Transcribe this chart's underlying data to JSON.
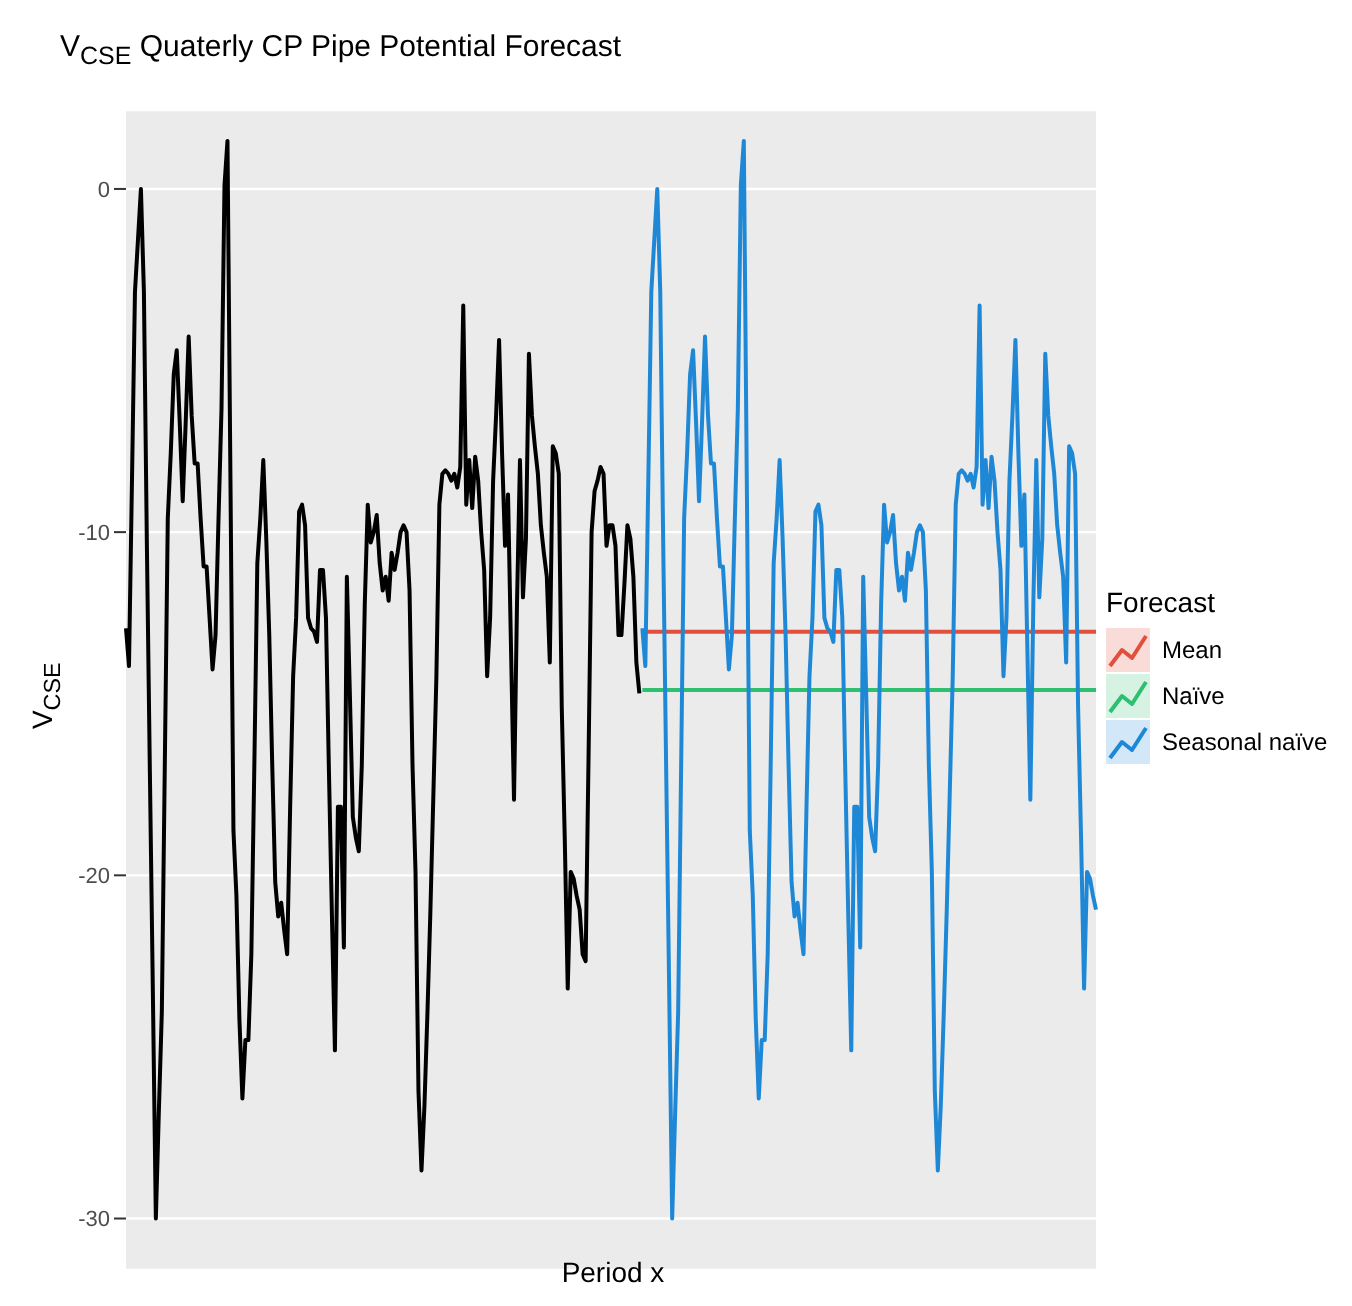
{
  "chart_data": {
    "type": "line",
    "title": "V$_{CSE}$ Quaterly CP Pipe Potential Forecast",
    "xlabel": "Period x",
    "ylabel": "V$_{CSE}$",
    "legend_title": "Forecast",
    "legend": "right",
    "grid": "y",
    "ylim": [
      -31.5,
      2.3
    ],
    "yticks": [
      0,
      -10,
      -20,
      -30
    ],
    "categories": [
      null,
      null,
      null,
      null,
      null,
      null,
      null,
      null,
      null,
      null,
      null,
      null,
      null,
      null,
      null,
      null,
      null,
      null,
      null,
      null,
      null,
      null,
      null,
      null,
      null,
      null,
      null,
      null,
      null,
      null,
      null,
      null,
      null,
      null,
      null,
      null,
      null,
      null,
      null,
      null,
      null,
      null,
      null,
      null,
      null,
      null,
      null,
      null,
      null,
      null,
      null,
      null,
      null,
      null,
      null,
      null,
      null,
      null,
      null,
      null,
      null,
      null,
      null,
      null,
      null,
      null,
      null,
      null,
      null,
      null,
      null,
      null,
      null,
      null,
      null,
      null,
      null,
      null,
      null,
      null,
      null,
      null,
      null,
      null,
      null,
      null,
      null,
      null,
      null,
      null,
      null,
      null,
      null,
      null,
      null,
      null,
      null,
      null,
      null,
      null,
      null,
      null,
      null,
      null,
      null,
      null,
      null,
      null,
      null,
      null,
      null,
      null,
      null,
      null,
      null,
      null,
      null,
      null,
      null,
      null,
      null,
      null,
      null,
      null,
      null,
      null,
      null,
      null,
      null,
      null,
      null,
      null,
      null,
      null,
      null,
      null,
      null,
      null,
      null,
      null,
      null,
      null,
      null,
      null,
      null,
      null,
      null,
      null,
      null,
      null,
      null,
      null,
      null,
      null,
      null,
      null,
      null,
      null,
      null,
      null,
      null,
      null,
      null,
      null,
      null,
      null,
      null,
      null,
      null,
      null,
      null,
      null,
      null,
      null,
      null,
      null,
      null,
      null,
      null,
      null,
      null,
      null,
      null,
      null,
      null,
      null,
      null,
      null,
      null,
      null,
      null,
      null,
      null,
      null,
      null,
      null,
      null,
      null,
      null,
      null,
      null,
      null,
      null,
      null,
      null,
      null,
      null,
      null,
      null,
      null,
      null,
      null,
      null,
      null,
      null,
      null,
      null,
      null,
      null,
      null,
      null,
      null,
      null,
      null,
      null,
      null,
      null,
      null,
      null,
      null,
      null,
      null,
      null,
      null,
      null,
      null,
      null,
      null,
      null,
      null,
      null,
      null,
      null,
      null,
      null,
      null,
      null,
      null,
      null,
      null,
      null,
      null,
      null,
      null,
      null,
      null,
      null,
      null,
      null,
      null,
      null,
      null,
      null,
      null,
      null,
      null,
      null,
      null,
      null,
      null,
      null,
      null,
      null,
      null,
      null,
      null,
      null,
      null,
      null,
      null,
      null,
      null,
      null,
      null,
      null,
      null,
      null,
      null,
      null,
      null,
      null,
      null,
      null,
      null,
      null,
      null,
      null,
      null,
      null,
      null,
      null,
      null,
      null,
      null,
      null,
      null,
      null,
      null,
      null,
      null,
      null,
      null,
      null,
      null,
      null,
      null,
      null,
      null,
      null,
      null,
      null,
      null,
      null,
      null,
      null,
      null
    ],
    "series": [
      {
        "color": "#000000",
        "values": [
          -12.8,
          -13.9,
          -8.5,
          -3.0,
          -1.5,
          0.0,
          -3.0,
          -10.4,
          -17.0,
          -23.4,
          -30.0,
          -26.9,
          -24.0,
          -16.8,
          -9.6,
          -7.7,
          -5.4,
          -4.7,
          -6.8,
          -9.1,
          -6.8,
          -4.3,
          -6.6,
          -8.0,
          -8.0,
          -9.6,
          -11.0,
          -11.0,
          -12.5,
          -14.0,
          -13.0,
          -9.6,
          -6.4,
          0.1,
          1.4,
          -8.5,
          -18.7,
          -20.6,
          -24.2,
          -26.5,
          -24.8,
          -24.8,
          -22.3,
          -16.8,
          -10.9,
          -9.6,
          -7.9,
          -10.2,
          -13.0,
          -16.8,
          -20.2,
          -21.2,
          -20.8,
          -21.6,
          -22.3,
          -18.0,
          -14.2,
          -12.5,
          -9.4,
          -9.2,
          -9.8,
          -12.5,
          -12.8,
          -12.9,
          -13.2,
          -11.1,
          -11.1,
          -12.5,
          -17.0,
          -21.2,
          -25.1,
          -18.0,
          -18.0,
          -22.1,
          -11.3,
          -14.7,
          -18.3,
          -18.9,
          -19.3,
          -16.8,
          -12.1,
          -9.2,
          -10.3,
          -10.0,
          -9.5,
          -10.9,
          -11.7,
          -11.3,
          -12.0,
          -10.6,
          -11.1,
          -10.6,
          -10.0,
          -9.8,
          -10.0,
          -11.7,
          -16.8,
          -19.9,
          -26.3,
          -28.6,
          -26.7,
          -24.0,
          -21.0,
          -17.6,
          -14.2,
          -9.2,
          -8.3,
          -8.2,
          -8.3,
          -8.5,
          -8.3,
          -8.7,
          -8.1,
          -3.4,
          -9.2,
          -7.9,
          -9.3,
          -7.8,
          -8.5,
          -10.0,
          -11.1,
          -14.2,
          -12.5,
          -8.5,
          -6.6,
          -4.4,
          -7.7,
          -10.4,
          -8.9,
          -13.4,
          -17.8,
          -12.1,
          -7.9,
          -11.9,
          -10.2,
          -4.8,
          -6.6,
          -7.5,
          -8.3,
          -9.8,
          -10.6,
          -11.3,
          -13.8,
          -7.5,
          -7.7,
          -8.3,
          -15.1,
          -18.9,
          -23.3,
          -19.9,
          -20.1,
          -20.6,
          -21.0,
          -22.3,
          -22.5,
          -16.4,
          -10.0,
          -8.8,
          -8.5,
          -8.1,
          -8.3,
          -10.4,
          -9.8,
          -9.8,
          -10.4,
          -13.0,
          -13.0,
          -11.5,
          -9.8,
          -10.2,
          -11.3,
          -13.8,
          -14.7,
          null,
          null,
          null,
          null,
          null,
          null,
          null,
          null,
          null,
          null,
          null,
          null,
          null,
          null,
          null,
          null,
          null,
          null,
          null,
          null,
          null,
          null,
          null,
          null,
          null,
          null,
          null,
          null,
          null,
          null,
          null,
          null,
          null,
          null,
          null,
          null,
          null,
          null,
          null,
          null,
          null,
          null,
          null,
          null,
          null,
          null,
          null,
          null,
          null,
          null,
          null,
          null,
          null,
          null,
          null,
          null,
          null,
          null,
          null,
          null,
          null,
          null,
          null,
          null,
          null,
          null,
          null,
          null,
          null,
          null,
          null,
          null,
          null,
          null,
          null,
          null,
          null,
          null,
          null,
          null,
          null,
          null,
          null,
          null,
          null,
          null,
          null,
          null,
          null,
          null,
          null,
          null,
          null,
          null,
          null,
          null,
          null,
          null,
          null,
          null,
          null,
          null,
          null,
          null,
          null,
          null,
          null,
          null,
          null,
          null,
          null,
          null,
          null,
          null,
          null,
          null,
          null,
          null,
          null,
          null,
          null,
          null,
          null,
          null,
          null,
          null,
          null,
          null,
          null,
          null,
          null,
          null,
          null,
          null,
          null,
          null,
          null,
          null,
          null,
          null,
          null,
          null,
          null,
          null,
          null,
          null,
          null,
          null,
          null,
          null,
          null,
          null,
          null
        ]
      },
      {
        "name": "Mean",
        "color": "#e0503c",
        "values": [
          null,
          null,
          null,
          null,
          null,
          null,
          null,
          null,
          null,
          null,
          null,
          null,
          null,
          null,
          null,
          null,
          null,
          null,
          null,
          null,
          null,
          null,
          null,
          null,
          null,
          null,
          null,
          null,
          null,
          null,
          null,
          null,
          null,
          null,
          null,
          null,
          null,
          null,
          null,
          null,
          null,
          null,
          null,
          null,
          null,
          null,
          null,
          null,
          null,
          null,
          null,
          null,
          null,
          null,
          null,
          null,
          null,
          null,
          null,
          null,
          null,
          null,
          null,
          null,
          null,
          null,
          null,
          null,
          null,
          null,
          null,
          null,
          null,
          null,
          null,
          null,
          null,
          null,
          null,
          null,
          null,
          null,
          null,
          null,
          null,
          null,
          null,
          null,
          null,
          null,
          null,
          null,
          null,
          null,
          null,
          null,
          null,
          null,
          null,
          null,
          null,
          null,
          null,
          null,
          null,
          null,
          null,
          null,
          null,
          null,
          null,
          null,
          null,
          null,
          null,
          null,
          null,
          null,
          null,
          null,
          null,
          null,
          null,
          null,
          null,
          null,
          null,
          null,
          null,
          null,
          null,
          null,
          null,
          null,
          null,
          null,
          null,
          null,
          null,
          null,
          null,
          null,
          null,
          null,
          null,
          null,
          null,
          null,
          null,
          null,
          null,
          null,
          null,
          null,
          null,
          null,
          null,
          null,
          null,
          null,
          null,
          null,
          null,
          null,
          null,
          null,
          null,
          null,
          null,
          null,
          null,
          null,
          null,
          -12.9,
          -12.9,
          -12.9,
          -12.9,
          -12.9,
          -12.9,
          -12.9,
          -12.9,
          -12.9,
          -12.9,
          -12.9,
          -12.9,
          -12.9,
          -12.9,
          -12.9,
          -12.9,
          -12.9,
          -12.9,
          -12.9,
          -12.9,
          -12.9,
          -12.9,
          -12.9,
          -12.9,
          -12.9,
          -12.9,
          -12.9,
          -12.9,
          -12.9,
          -12.9,
          -12.9,
          -12.9,
          -12.9,
          -12.9,
          -12.9,
          -12.9,
          -12.9,
          -12.9,
          -12.9,
          -12.9,
          -12.9,
          -12.9,
          -12.9,
          -12.9,
          -12.9,
          -12.9,
          -12.9,
          -12.9,
          -12.9,
          -12.9,
          -12.9,
          -12.9,
          -12.9,
          -12.9,
          -12.9,
          -12.9,
          -12.9,
          -12.9,
          -12.9,
          -12.9,
          -12.9,
          -12.9,
          -12.9,
          -12.9,
          -12.9,
          -12.9,
          -12.9,
          -12.9,
          -12.9,
          -12.9,
          -12.9,
          -12.9,
          -12.9,
          -12.9,
          -12.9,
          -12.9,
          -12.9,
          -12.9,
          -12.9,
          -12.9,
          -12.9,
          -12.9,
          -12.9,
          -12.9,
          -12.9,
          -12.9,
          -12.9,
          -12.9,
          -12.9,
          -12.9,
          -12.9,
          -12.9,
          -12.9,
          -12.9,
          -12.9,
          -12.9,
          -12.9,
          -12.9,
          -12.9,
          -12.9,
          -12.9,
          -12.9,
          -12.9,
          -12.9,
          -12.9,
          -12.9,
          -12.9,
          -12.9,
          -12.9,
          -12.9,
          -12.9,
          -12.9,
          -12.9,
          -12.9,
          -12.9,
          -12.9,
          -12.9,
          -12.9,
          -12.9,
          -12.9,
          -12.9,
          -12.9,
          -12.9,
          -12.9,
          -12.9,
          -12.9,
          -12.9,
          -12.9,
          -12.9,
          -12.9,
          -12.9,
          -12.9,
          -12.9,
          -12.9,
          -12.9,
          -12.9,
          -12.9,
          -12.9,
          -12.9,
          -12.9,
          -12.9,
          -12.9,
          -12.9,
          -12.9,
          -12.9,
          -12.9,
          -12.9,
          -12.9,
          -12.9,
          -12.9,
          -12.9,
          -12.9,
          -12.9
        ]
      },
      {
        "name": "Naïve",
        "color": "#2fbf71",
        "values": [
          null,
          null,
          null,
          null,
          null,
          null,
          null,
          null,
          null,
          null,
          null,
          null,
          null,
          null,
          null,
          null,
          null,
          null,
          null,
          null,
          null,
          null,
          null,
          null,
          null,
          null,
          null,
          null,
          null,
          null,
          null,
          null,
          null,
          null,
          null,
          null,
          null,
          null,
          null,
          null,
          null,
          null,
          null,
          null,
          null,
          null,
          null,
          null,
          null,
          null,
          null,
          null,
          null,
          null,
          null,
          null,
          null,
          null,
          null,
          null,
          null,
          null,
          null,
          null,
          null,
          null,
          null,
          null,
          null,
          null,
          null,
          null,
          null,
          null,
          null,
          null,
          null,
          null,
          null,
          null,
          null,
          null,
          null,
          null,
          null,
          null,
          null,
          null,
          null,
          null,
          null,
          null,
          null,
          null,
          null,
          null,
          null,
          null,
          null,
          null,
          null,
          null,
          null,
          null,
          null,
          null,
          null,
          null,
          null,
          null,
          null,
          null,
          null,
          null,
          null,
          null,
          null,
          null,
          null,
          null,
          null,
          null,
          null,
          null,
          null,
          null,
          null,
          null,
          null,
          null,
          null,
          null,
          null,
          null,
          null,
          null,
          null,
          null,
          null,
          null,
          null,
          null,
          null,
          null,
          null,
          null,
          null,
          null,
          null,
          null,
          null,
          null,
          null,
          null,
          null,
          null,
          null,
          null,
          null,
          null,
          null,
          null,
          null,
          null,
          null,
          null,
          null,
          null,
          null,
          null,
          null,
          null,
          null,
          -14.6,
          -14.6,
          -14.6,
          -14.6,
          -14.6,
          -14.6,
          -14.6,
          -14.6,
          -14.6,
          -14.6,
          -14.6,
          -14.6,
          -14.6,
          -14.6,
          -14.6,
          -14.6,
          -14.6,
          -14.6,
          -14.6,
          -14.6,
          -14.6,
          -14.6,
          -14.6,
          -14.6,
          -14.6,
          -14.6,
          -14.6,
          -14.6,
          -14.6,
          -14.6,
          -14.6,
          -14.6,
          -14.6,
          -14.6,
          -14.6,
          -14.6,
          -14.6,
          -14.6,
          -14.6,
          -14.6,
          -14.6,
          -14.6,
          -14.6,
          -14.6,
          -14.6,
          -14.6,
          -14.6,
          -14.6,
          -14.6,
          -14.6,
          -14.6,
          -14.6,
          -14.6,
          -14.6,
          -14.6,
          -14.6,
          -14.6,
          -14.6,
          -14.6,
          -14.6,
          -14.6,
          -14.6,
          -14.6,
          -14.6,
          -14.6,
          -14.6,
          -14.6,
          -14.6,
          -14.6,
          -14.6,
          -14.6,
          -14.6,
          -14.6,
          -14.6,
          -14.6,
          -14.6,
          -14.6,
          -14.6,
          -14.6,
          -14.6,
          -14.6,
          -14.6,
          -14.6,
          -14.6,
          -14.6,
          -14.6,
          -14.6,
          -14.6,
          -14.6,
          -14.6,
          -14.6,
          -14.6,
          -14.6,
          -14.6,
          -14.6,
          -14.6,
          -14.6,
          -14.6,
          -14.6,
          -14.6,
          -14.6,
          -14.6,
          -14.6,
          -14.6,
          -14.6,
          -14.6,
          -14.6,
          -14.6,
          -14.6,
          -14.6,
          -14.6,
          -14.6,
          -14.6,
          -14.6,
          -14.6,
          -14.6,
          -14.6,
          -14.6,
          -14.6,
          -14.6,
          -14.6,
          -14.6,
          -14.6,
          -14.6,
          -14.6,
          -14.6,
          -14.6,
          -14.6,
          -14.6,
          -14.6,
          -14.6,
          -14.6,
          -14.6,
          -14.6,
          -14.6,
          -14.6,
          -14.6,
          -14.6,
          -14.6,
          -14.6,
          -14.6,
          -14.6,
          -14.6,
          -14.6,
          -14.6,
          -14.6,
          -14.6,
          -14.6,
          -14.6,
          -14.6,
          -14.6,
          -14.6,
          -14.6
        ]
      },
      {
        "name": "Seasonal naïve",
        "color": "#1f88d6",
        "values": [
          null,
          null,
          null,
          null,
          null,
          null,
          null,
          null,
          null,
          null,
          null,
          null,
          null,
          null,
          null,
          null,
          null,
          null,
          null,
          null,
          null,
          null,
          null,
          null,
          null,
          null,
          null,
          null,
          null,
          null,
          null,
          null,
          null,
          null,
          null,
          null,
          null,
          null,
          null,
          null,
          null,
          null,
          null,
          null,
          null,
          null,
          null,
          null,
          null,
          null,
          null,
          null,
          null,
          null,
          null,
          null,
          null,
          null,
          null,
          null,
          null,
          null,
          null,
          null,
          null,
          null,
          null,
          null,
          null,
          null,
          null,
          null,
          null,
          null,
          null,
          null,
          null,
          null,
          null,
          null,
          null,
          null,
          null,
          null,
          null,
          null,
          null,
          null,
          null,
          null,
          null,
          null,
          null,
          null,
          null,
          null,
          null,
          null,
          null,
          null,
          null,
          null,
          null,
          null,
          null,
          null,
          null,
          null,
          null,
          null,
          null,
          null,
          null,
          null,
          null,
          null,
          null,
          null,
          null,
          null,
          null,
          null,
          null,
          null,
          null,
          null,
          null,
          null,
          null,
          null,
          null,
          null,
          null,
          null,
          null,
          null,
          null,
          null,
          null,
          null,
          null,
          null,
          null,
          null,
          null,
          null,
          null,
          null,
          null,
          null,
          null,
          null,
          null,
          null,
          null,
          null,
          null,
          null,
          null,
          null,
          null,
          null,
          null,
          null,
          null,
          null,
          null,
          null,
          null,
          null,
          null,
          null,
          null,
          -12.8,
          -13.9,
          -8.5,
          -3.0,
          -1.5,
          0.0,
          -3.0,
          -10.4,
          -17.0,
          -23.4,
          -30.0,
          -26.9,
          -24.0,
          -16.8,
          -9.6,
          -7.7,
          -5.4,
          -4.7,
          -6.8,
          -9.1,
          -6.8,
          -4.3,
          -6.6,
          -8.0,
          -8.0,
          -9.6,
          -11.0,
          -11.0,
          -12.5,
          -14.0,
          -13.0,
          -9.6,
          -6.4,
          0.1,
          1.4,
          -8.5,
          -18.7,
          -20.6,
          -24.2,
          -26.5,
          -24.8,
          -24.8,
          -22.3,
          -16.8,
          -10.9,
          -9.6,
          -7.9,
          -10.2,
          -13.0,
          -16.8,
          -20.2,
          -21.2,
          -20.8,
          -21.6,
          -22.3,
          -18.0,
          -14.2,
          -12.5,
          -9.4,
          -9.2,
          -9.8,
          -12.5,
          -12.8,
          -12.9,
          -13.2,
          -11.1,
          -11.1,
          -12.5,
          -17.0,
          -21.2,
          -25.1,
          -18.0,
          -18.0,
          -22.1,
          -11.3,
          -14.7,
          -18.3,
          -18.9,
          -19.3,
          -16.8,
          -12.1,
          -9.2,
          -10.3,
          -10.0,
          -9.5,
          -10.9,
          -11.7,
          -11.3,
          -12.0,
          -10.6,
          -11.1,
          -10.6,
          -10.0,
          -9.8,
          -10.0,
          -11.7,
          -16.8,
          -19.9,
          -26.3,
          -28.6,
          -26.7,
          -24.0,
          -21.0,
          -17.6,
          -14.2,
          -9.2,
          -8.3,
          -8.2,
          -8.3,
          -8.5,
          -8.3,
          -8.7,
          -8.1,
          -3.4,
          -9.2,
          -7.9,
          -9.3,
          -7.8,
          -8.5,
          -10.0,
          -11.1,
          -14.2,
          -12.5,
          -8.5,
          -6.6,
          -4.4,
          -7.7,
          -10.4,
          -8.9,
          -13.4,
          -17.8,
          -12.1,
          -7.9,
          -11.9,
          -10.2,
          -4.8,
          -6.6,
          -7.5,
          -8.3,
          -9.8,
          -10.6,
          -11.3,
          -13.8,
          -7.5,
          -7.7,
          -8.3,
          -15.1,
          -18.9,
          -23.3,
          -19.9,
          -20.1,
          -20.6,
          -21.0
        ]
      }
    ]
  }
}
